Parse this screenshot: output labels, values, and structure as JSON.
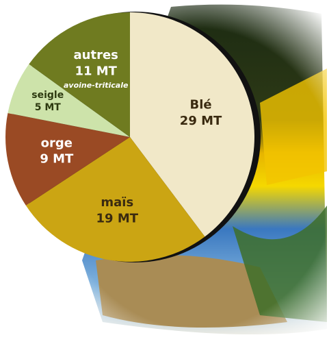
{
  "chart_data": {
    "type": "pie",
    "categories": [
      "Blé",
      "maïs",
      "orge",
      "seigle",
      "autres"
    ],
    "values": [
      29,
      19,
      9,
      5,
      11
    ],
    "value_labels": [
      "29 MT",
      "19 MT",
      "9 MT",
      "5 MT",
      "11 MT"
    ],
    "colors": [
      "#f1e8c8",
      "#cba513",
      "#9a4a24",
      "#cde3aa",
      "#6f7b20"
    ],
    "text_colors": [
      "#3a2a10",
      "#3a2a10",
      "#ffffff",
      "#2d3a10",
      "#ffffff"
    ],
    "annotation": "avoine-triticale"
  }
}
